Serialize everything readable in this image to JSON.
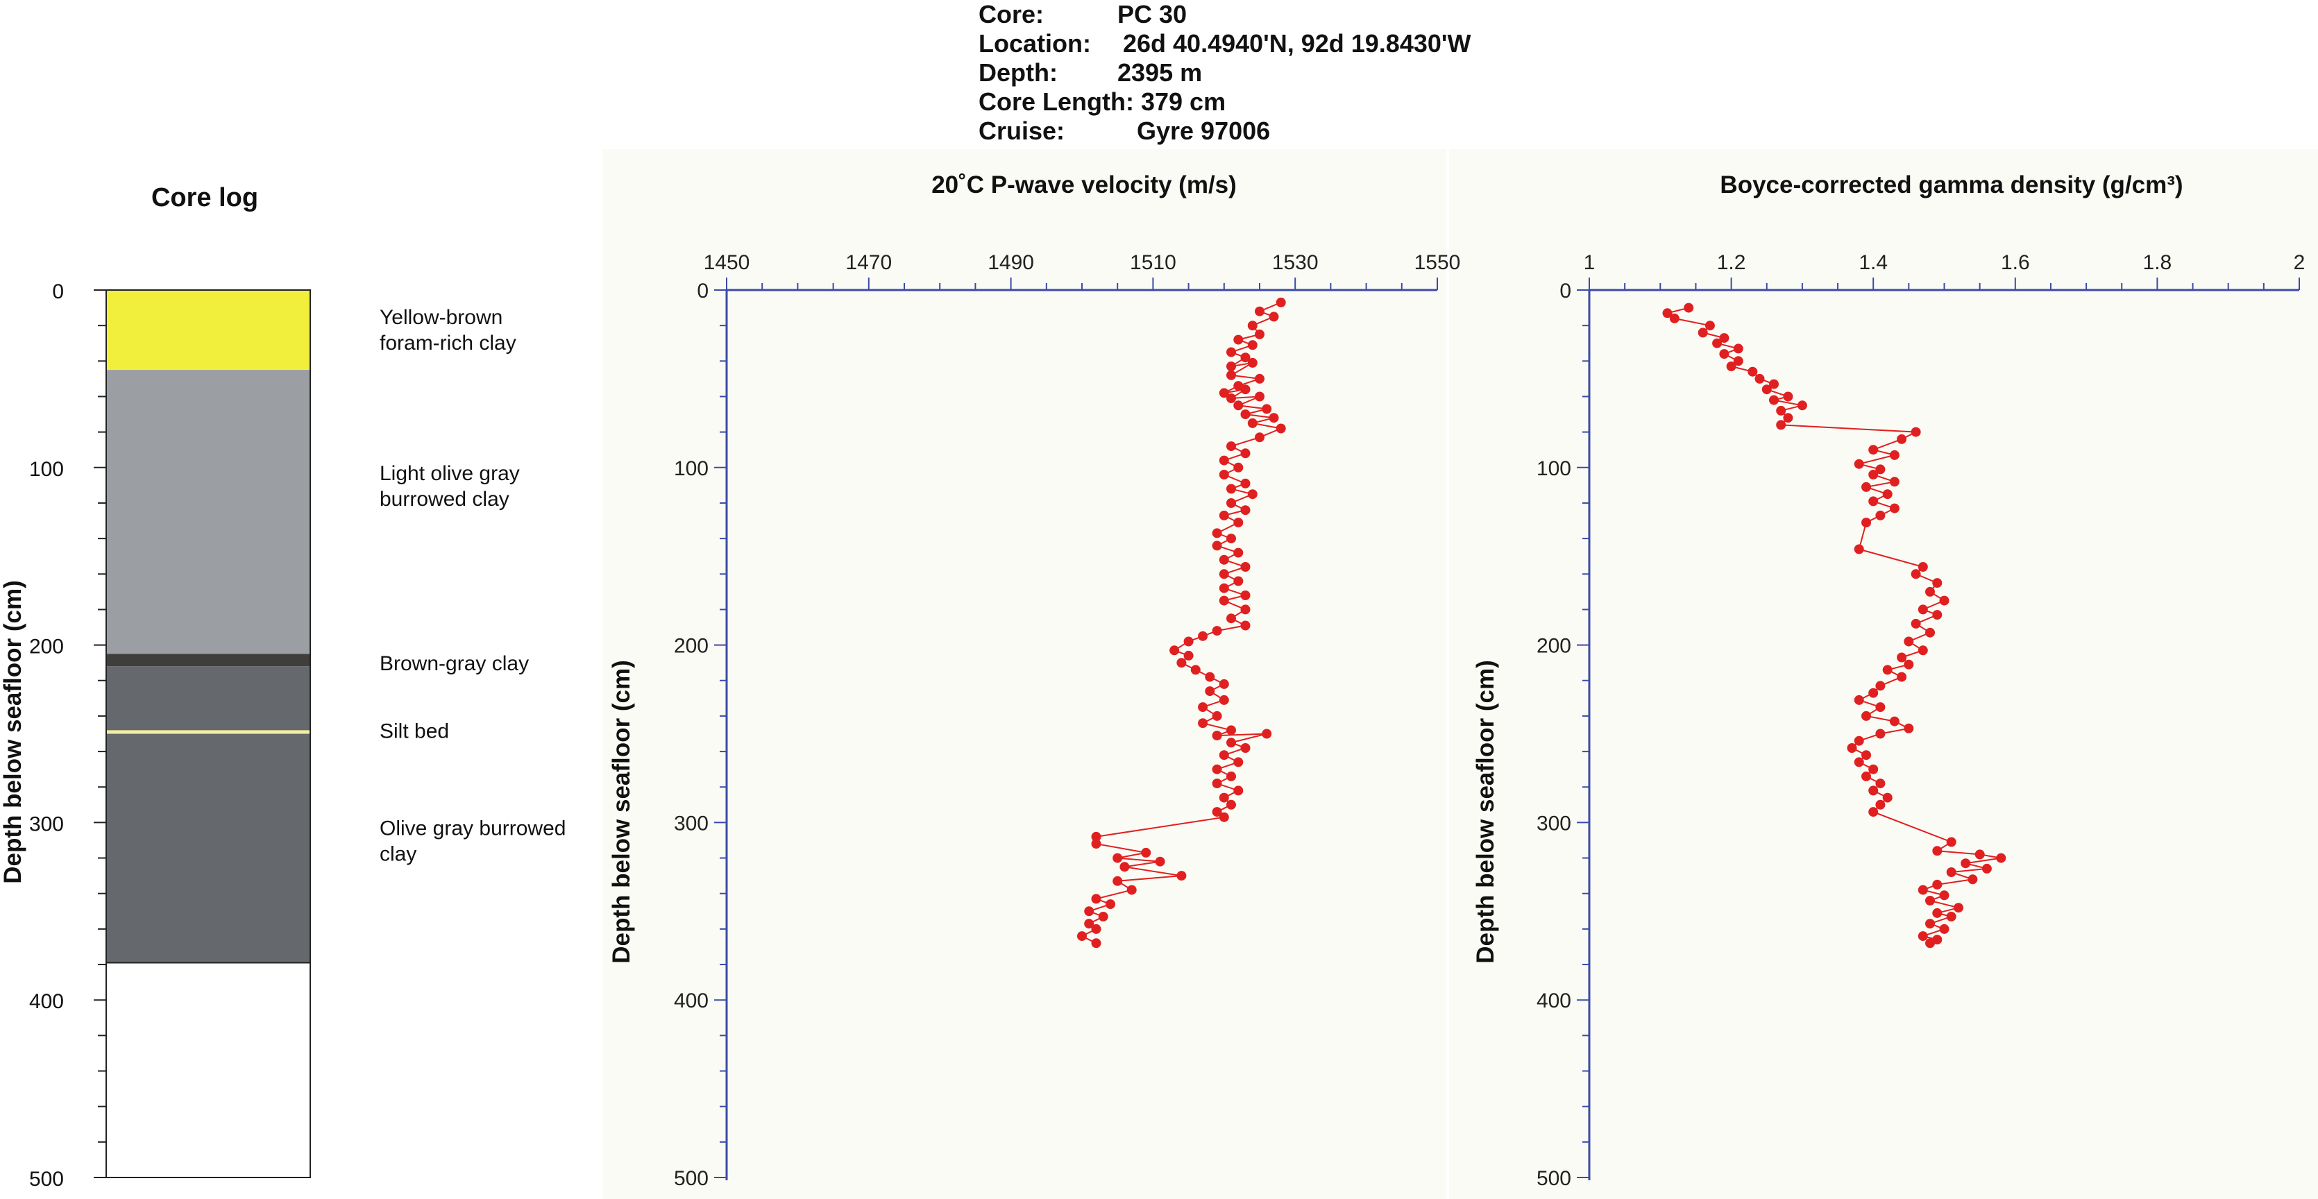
{
  "header": {
    "rows": [
      {
        "label": "Core:",
        "value": "PC 30"
      },
      {
        "label": "Location:",
        "value": "26d 40.4940'N, 92d 19.8430'W"
      },
      {
        "label": "Depth:",
        "value": "2395 m"
      },
      {
        "label": "Core Length: 379 cm",
        "value": ""
      },
      {
        "label": "Cruise:",
        "value": "Gyre 97006"
      }
    ]
  },
  "chart_data": [
    {
      "type": "table",
      "title": "Core log",
      "ylabel": "Depth below seafloor (cm)",
      "ylim": [
        0,
        500
      ],
      "yticks": [
        "0",
        "100",
        "200",
        "300",
        "400",
        "500"
      ],
      "core_length_cm": 379,
      "units": [
        {
          "name": "Yellow-brown foram-rich clay",
          "label_lines": [
            "Yellow-brown",
            "foram-rich clay"
          ],
          "top": 0,
          "bottom": 45,
          "color": "#f2ef3c",
          "label_depth": 22
        },
        {
          "name": "Light olive gray burrowed clay",
          "label_lines": [
            "Light olive gray",
            "burrowed clay"
          ],
          "top": 45,
          "bottom": 205,
          "color": "#9b9ea3",
          "label_depth": 110
        },
        {
          "name": "Brown-gray clay",
          "label_lines": [
            "Brown-gray clay"
          ],
          "top": 205,
          "bottom": 212,
          "color": "#3f3e3c",
          "label_depth": 210
        },
        {
          "name": "Olive gray burrowed clay",
          "label_lines": [
            "Olive gray burrowed",
            "clay"
          ],
          "top": 212,
          "bottom": 379,
          "color": "#65696e",
          "label_depth": 310
        },
        {
          "name": "Silt bed",
          "label_lines": [
            "Silt bed"
          ],
          "top": 248,
          "bottom": 250,
          "color": "#f4f0a0",
          "label_depth": 248
        }
      ]
    },
    {
      "type": "line",
      "title": "20˚C P-wave velocity (m/s)",
      "xlabel": "",
      "ylabel": "Depth below seafloor (cm)",
      "xlim": [
        1450,
        1550
      ],
      "ylim": [
        0,
        500
      ],
      "xticks": [
        "1450",
        "1470",
        "1490",
        "1510",
        "1530",
        "1550"
      ],
      "yticks": [
        "0",
        "100",
        "200",
        "300",
        "400",
        "500"
      ],
      "color": "#e02020",
      "series": [
        {
          "x": [
            1528,
            1525,
            1527,
            1524,
            1525,
            1522,
            1524,
            1521,
            1523,
            1521,
            1524,
            1521,
            1525,
            1522,
            1520,
            1523,
            1521,
            1525,
            1522,
            1526,
            1523,
            1527,
            1524,
            1528,
            1525,
            1521,
            1523,
            1520,
            1522,
            1520,
            1523,
            1521,
            1524,
            1521,
            1523,
            1520,
            1522,
            1519,
            1521,
            1519,
            1522,
            1520,
            1523,
            1520,
            1522,
            1520,
            1523,
            1520,
            1523,
            1521,
            1523,
            1519,
            1517,
            1515,
            1513,
            1515,
            1514,
            1516,
            1518,
            1520,
            1518,
            1520,
            1517,
            1519,
            1517,
            1521,
            1519,
            1526,
            1521,
            1523,
            1520,
            1522,
            1519,
            1521,
            1519,
            1522,
            1520,
            1521,
            1519,
            1520,
            1502,
            1502,
            1509,
            1505,
            1511,
            1506,
            1514,
            1505,
            1507,
            1502,
            1504,
            1501,
            1503,
            1501,
            1502,
            1500,
            1502
          ],
          "y": [
            7,
            12,
            15,
            20,
            25,
            28,
            31,
            35,
            38,
            43,
            41,
            48,
            50,
            54,
            58,
            56,
            61,
            60,
            65,
            67,
            70,
            72,
            75,
            78,
            83,
            88,
            92,
            96,
            100,
            104,
            109,
            112,
            115,
            120,
            124,
            127,
            131,
            137,
            140,
            144,
            148,
            152,
            156,
            160,
            164,
            168,
            172,
            175,
            180,
            185,
            189,
            192,
            195,
            198,
            203,
            206,
            210,
            214,
            218,
            222,
            226,
            231,
            235,
            240,
            244,
            248,
            251,
            250,
            255,
            258,
            262,
            266,
            270,
            274,
            278,
            282,
            286,
            290,
            294,
            297,
            308,
            312,
            317,
            320,
            322,
            325,
            330,
            333,
            338,
            343,
            346,
            350,
            353,
            357,
            360,
            364,
            368
          ]
        }
      ]
    },
    {
      "type": "line",
      "title": "Boyce-corrected gamma density (g/cm³)",
      "xlabel": "",
      "ylabel": "Depth below seafloor (cm)",
      "xlim": [
        1,
        2
      ],
      "ylim": [
        0,
        500
      ],
      "xticks": [
        "1",
        "1.2",
        "1.4",
        "1.6",
        "1.8",
        "2"
      ],
      "yticks": [
        "0",
        "100",
        "200",
        "300",
        "400",
        "500"
      ],
      "color": "#e02020",
      "series": [
        {
          "x": [
            1.14,
            1.11,
            1.12,
            1.17,
            1.16,
            1.19,
            1.18,
            1.21,
            1.19,
            1.21,
            1.2,
            1.23,
            1.24,
            1.26,
            1.25,
            1.28,
            1.26,
            1.3,
            1.27,
            1.28,
            1.27,
            1.46,
            1.44,
            1.4,
            1.43,
            1.38,
            1.41,
            1.4,
            1.43,
            1.39,
            1.42,
            1.4,
            1.43,
            1.41,
            1.39,
            1.38,
            1.47,
            1.46,
            1.49,
            1.48,
            1.5,
            1.47,
            1.49,
            1.46,
            1.48,
            1.45,
            1.47,
            1.44,
            1.45,
            1.42,
            1.44,
            1.41,
            1.4,
            1.38,
            1.41,
            1.39,
            1.43,
            1.45,
            1.41,
            1.38,
            1.37,
            1.39,
            1.38,
            1.4,
            1.39,
            1.41,
            1.4,
            1.42,
            1.41,
            1.4,
            1.51,
            1.49,
            1.55,
            1.58,
            1.53,
            1.56,
            1.51,
            1.54,
            1.49,
            1.47,
            1.5,
            1.48,
            1.52,
            1.49,
            1.51,
            1.48,
            1.5,
            1.47,
            1.49,
            1.48
          ],
          "y": [
            10,
            13,
            16,
            20,
            24,
            27,
            30,
            33,
            36,
            40,
            43,
            46,
            50,
            53,
            56,
            60,
            62,
            65,
            68,
            72,
            76,
            80,
            84,
            90,
            93,
            98,
            101,
            104,
            108,
            111,
            115,
            119,
            123,
            127,
            131,
            146,
            156,
            160,
            165,
            170,
            175,
            180,
            183,
            188,
            193,
            198,
            203,
            207,
            211,
            214,
            218,
            223,
            227,
            231,
            235,
            240,
            243,
            247,
            250,
            254,
            258,
            262,
            266,
            270,
            274,
            278,
            282,
            286,
            290,
            294,
            311,
            316,
            318,
            320,
            323,
            326,
            328,
            332,
            335,
            338,
            341,
            344,
            348,
            351,
            353,
            357,
            360,
            364,
            366,
            368
          ]
        }
      ]
    }
  ]
}
